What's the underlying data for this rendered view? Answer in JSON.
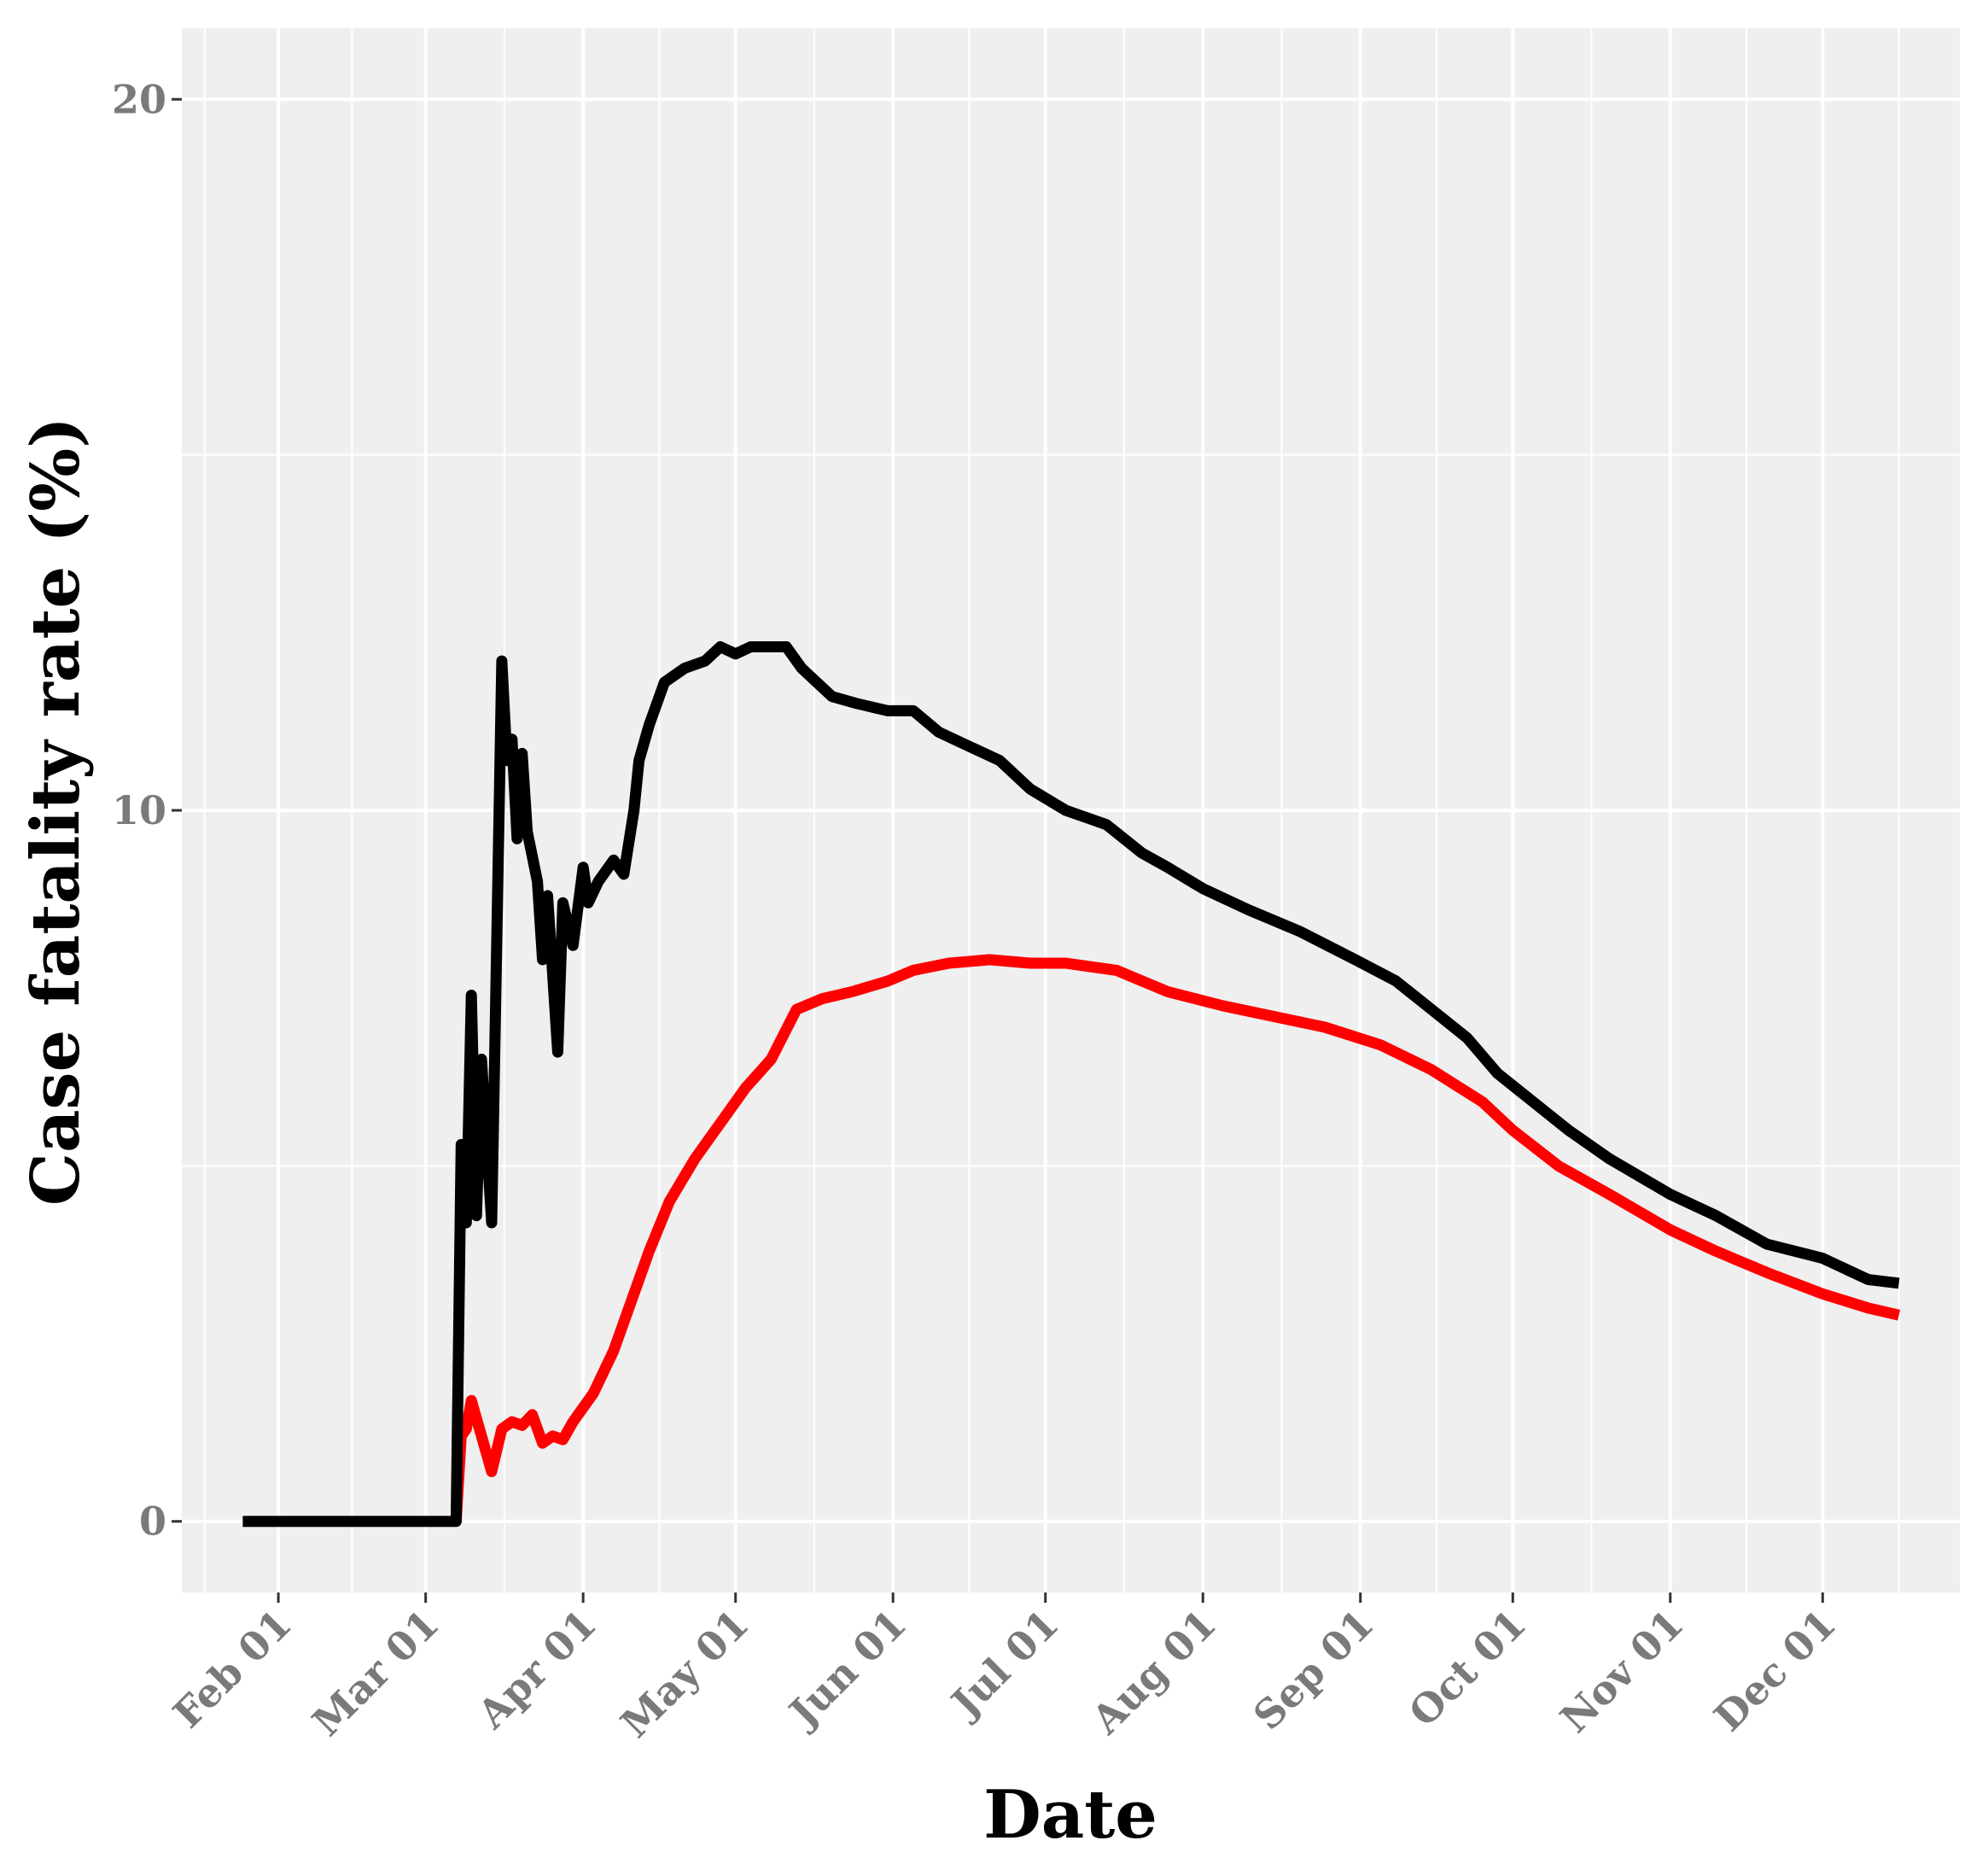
{
  "chart_data": {
    "type": "line",
    "xlabel": "Date",
    "ylabel": "Case fatality rate (%)",
    "x_ticks": [
      "Feb 01",
      "Mar 01",
      "Apr 01",
      "May 01",
      "Jun 01",
      "Jul 01",
      "Aug 01",
      "Sep 01",
      "Oct 01",
      "Nov 01",
      "Dec 01"
    ],
    "x_tick_dates": [
      "2020-02-01",
      "2020-03-01",
      "2020-04-01",
      "2020-05-01",
      "2020-06-01",
      "2020-07-01",
      "2020-08-01",
      "2020-09-01",
      "2020-10-01",
      "2020-11-01",
      "2020-12-01"
    ],
    "xlim": [
      "2020-01-13",
      "2020-12-28"
    ],
    "y_ticks": [
      0,
      10,
      20
    ],
    "ylim": [
      -1,
      21
    ],
    "grid": true,
    "legend": "none",
    "series": [
      {
        "color": "#000000",
        "points": [
          [
            "2020-01-25",
            0
          ],
          [
            "2020-03-07",
            0
          ],
          [
            "2020-03-08",
            5.3
          ],
          [
            "2020-03-09",
            4.2
          ],
          [
            "2020-03-10",
            7.4
          ],
          [
            "2020-03-11",
            4.3
          ],
          [
            "2020-03-12",
            6.5
          ],
          [
            "2020-03-14",
            4.2
          ],
          [
            "2020-03-16",
            12.1
          ],
          [
            "2020-03-17",
            10.7
          ],
          [
            "2020-03-18",
            11.0
          ],
          [
            "2020-03-19",
            9.6
          ],
          [
            "2020-03-20",
            10.8
          ],
          [
            "2020-03-21",
            9.7
          ],
          [
            "2020-03-23",
            9.0
          ],
          [
            "2020-03-24",
            7.9
          ],
          [
            "2020-03-25",
            8.8
          ],
          [
            "2020-03-27",
            6.6
          ],
          [
            "2020-03-28",
            8.7
          ],
          [
            "2020-03-30",
            8.1
          ],
          [
            "2020-04-01",
            9.2
          ],
          [
            "2020-04-02",
            8.7
          ],
          [
            "2020-04-04",
            9.0
          ],
          [
            "2020-04-07",
            9.3
          ],
          [
            "2020-04-09",
            9.1
          ],
          [
            "2020-04-11",
            10.0
          ],
          [
            "2020-04-12",
            10.7
          ],
          [
            "2020-04-14",
            11.2
          ],
          [
            "2020-04-17",
            11.8
          ],
          [
            "2020-04-21",
            12.0
          ],
          [
            "2020-04-25",
            12.1
          ],
          [
            "2020-04-28",
            12.3
          ],
          [
            "2020-05-01",
            12.2
          ],
          [
            "2020-05-04",
            12.3
          ],
          [
            "2020-05-07",
            12.3
          ],
          [
            "2020-05-11",
            12.3
          ],
          [
            "2020-05-14",
            12.0
          ],
          [
            "2020-05-17",
            11.8
          ],
          [
            "2020-05-20",
            11.6
          ],
          [
            "2020-05-25",
            11.5
          ],
          [
            "2020-05-31",
            11.4
          ],
          [
            "2020-06-05",
            11.4
          ],
          [
            "2020-06-10",
            11.1
          ],
          [
            "2020-06-16",
            10.9
          ],
          [
            "2020-06-22",
            10.7
          ],
          [
            "2020-06-28",
            10.3
          ],
          [
            "2020-07-05",
            10.0
          ],
          [
            "2020-07-13",
            9.8
          ],
          [
            "2020-07-20",
            9.4
          ],
          [
            "2020-07-25",
            9.2
          ],
          [
            "2020-08-01",
            8.9
          ],
          [
            "2020-08-10",
            8.6
          ],
          [
            "2020-08-20",
            8.3
          ],
          [
            "2020-08-31",
            7.9
          ],
          [
            "2020-09-08",
            7.6
          ],
          [
            "2020-09-15",
            7.2
          ],
          [
            "2020-09-22",
            6.8
          ],
          [
            "2020-09-28",
            6.3
          ],
          [
            "2020-10-05",
            5.9
          ],
          [
            "2020-10-12",
            5.5
          ],
          [
            "2020-10-20",
            5.1
          ],
          [
            "2020-11-01",
            4.6
          ],
          [
            "2020-11-10",
            4.3
          ],
          [
            "2020-11-20",
            3.9
          ],
          [
            "2020-12-01",
            3.7
          ],
          [
            "2020-12-10",
            3.4
          ],
          [
            "2020-12-16",
            3.35
          ]
        ]
      },
      {
        "color": "#ff0000",
        "points": [
          [
            "2020-03-07",
            0
          ],
          [
            "2020-03-08",
            1.2
          ],
          [
            "2020-03-09",
            1.3
          ],
          [
            "2020-03-10",
            1.7
          ],
          [
            "2020-03-12",
            1.2
          ],
          [
            "2020-03-14",
            0.7
          ],
          [
            "2020-03-16",
            1.3
          ],
          [
            "2020-03-18",
            1.4
          ],
          [
            "2020-03-20",
            1.35
          ],
          [
            "2020-03-22",
            1.5
          ],
          [
            "2020-03-24",
            1.1
          ],
          [
            "2020-03-26",
            1.2
          ],
          [
            "2020-03-28",
            1.15
          ],
          [
            "2020-03-30",
            1.4
          ],
          [
            "2020-04-03",
            1.8
          ],
          [
            "2020-04-07",
            2.4
          ],
          [
            "2020-04-10",
            3.0
          ],
          [
            "2020-04-14",
            3.8
          ],
          [
            "2020-04-18",
            4.5
          ],
          [
            "2020-04-23",
            5.1
          ],
          [
            "2020-04-28",
            5.6
          ],
          [
            "2020-05-03",
            6.1
          ],
          [
            "2020-05-08",
            6.5
          ],
          [
            "2020-05-13",
            7.2
          ],
          [
            "2020-05-18",
            7.35
          ],
          [
            "2020-05-24",
            7.45
          ],
          [
            "2020-05-31",
            7.6
          ],
          [
            "2020-06-05",
            7.75
          ],
          [
            "2020-06-12",
            7.85
          ],
          [
            "2020-06-20",
            7.9
          ],
          [
            "2020-06-28",
            7.85
          ],
          [
            "2020-07-05",
            7.85
          ],
          [
            "2020-07-15",
            7.75
          ],
          [
            "2020-07-25",
            7.45
          ],
          [
            "2020-08-05",
            7.25
          ],
          [
            "2020-08-15",
            7.1
          ],
          [
            "2020-08-25",
            6.95
          ],
          [
            "2020-09-05",
            6.7
          ],
          [
            "2020-09-15",
            6.35
          ],
          [
            "2020-09-25",
            5.9
          ],
          [
            "2020-10-01",
            5.5
          ],
          [
            "2020-10-10",
            5.0
          ],
          [
            "2020-10-20",
            4.6
          ],
          [
            "2020-11-01",
            4.1
          ],
          [
            "2020-11-10",
            3.8
          ],
          [
            "2020-11-20",
            3.5
          ],
          [
            "2020-12-01",
            3.2
          ],
          [
            "2020-12-10",
            3.0
          ],
          [
            "2020-12-16",
            2.9
          ]
        ]
      }
    ]
  }
}
